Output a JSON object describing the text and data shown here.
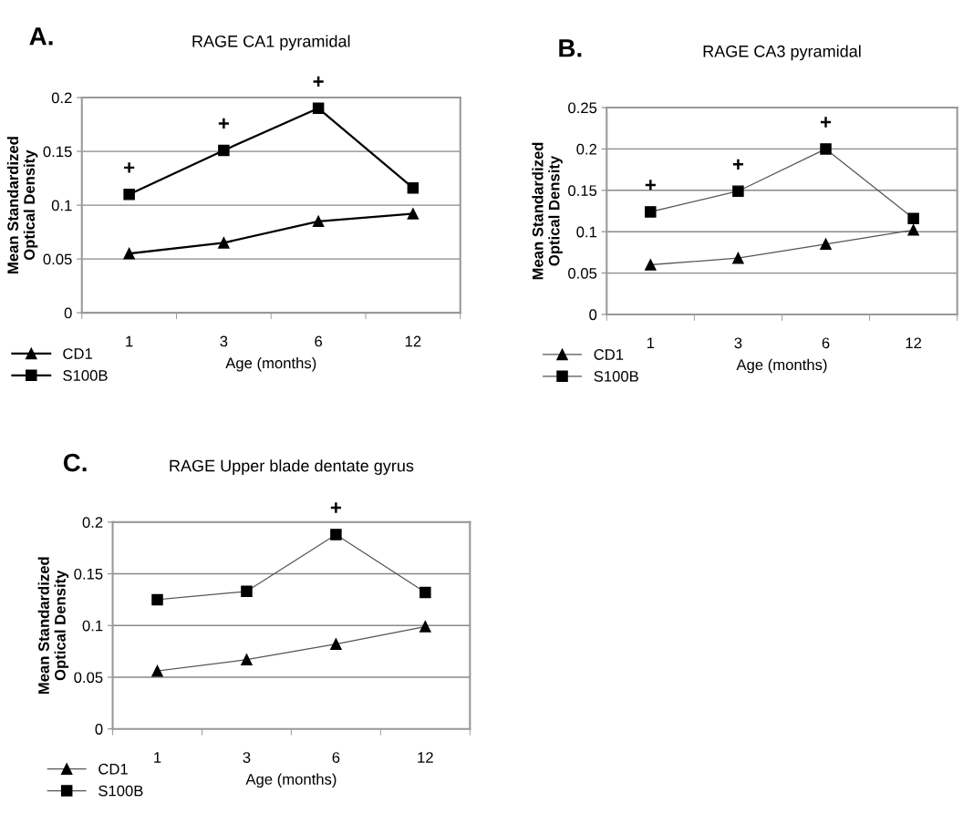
{
  "chart_data": [
    {
      "type": "line",
      "title": "RAGE CA1 pyramidal",
      "xlabel": "Age (months)",
      "ylabel": "Mean Standardized\nOptical Density",
      "categories": [
        "1",
        "3",
        "6",
        "12"
      ],
      "ylim": [
        0,
        0.2
      ],
      "yticks": [
        0,
        0.05,
        0.1,
        0.15,
        0.2
      ],
      "grid": "y",
      "legend": "bottom left",
      "series": [
        {
          "name": "CD1",
          "color": "#000000",
          "marker": "triangle",
          "values": [
            0.055,
            0.065,
            0.085,
            0.092
          ]
        },
        {
          "name": "S100B",
          "color": "#000000",
          "marker": "square",
          "values": [
            0.11,
            0.151,
            0.19,
            0.116
          ]
        }
      ],
      "annotations": [
        "A.",
        {
          "text": "+",
          "x": "1",
          "y": 0.11
        },
        {
          "text": "+",
          "x": "3",
          "y": 0.151
        },
        {
          "text": "+",
          "x": "6",
          "y": 0.19
        }
      ]
    },
    {
      "type": "line",
      "title": "RAGE CA3 pyramidal",
      "xlabel": "Age (months)",
      "ylabel": "Mean Standardized\nOptical Density",
      "categories": [
        "1",
        "3",
        "6",
        "12"
      ],
      "ylim": [
        0,
        0.25
      ],
      "yticks": [
        0,
        0.05,
        0.1,
        0.15,
        0.2,
        0.25
      ],
      "grid": "y",
      "legend": "bottom left",
      "series": [
        {
          "name": "CD1",
          "color": "#555555",
          "marker": "triangle",
          "values": [
            0.06,
            0.068,
            0.085,
            0.102
          ]
        },
        {
          "name": "S100B",
          "color": "#555555",
          "marker": "square",
          "values": [
            0.124,
            0.149,
            0.2,
            0.116
          ]
        }
      ],
      "annotations": [
        "B.",
        {
          "text": "+",
          "x": "1",
          "y": 0.124
        },
        {
          "text": "+",
          "x": "3",
          "y": 0.149
        },
        {
          "text": "+",
          "x": "6",
          "y": 0.2
        }
      ]
    },
    {
      "type": "line",
      "title": "RAGE Upper blade dentate gyrus",
      "xlabel": "Age (months)",
      "ylabel": "Mean Standardized\nOptical Density",
      "categories": [
        "1",
        "3",
        "6",
        "12"
      ],
      "ylim": [
        0,
        0.2
      ],
      "yticks": [
        0,
        0.05,
        0.1,
        0.15,
        0.2
      ],
      "grid": "y",
      "legend": "bottom left",
      "series": [
        {
          "name": "CD1",
          "color": "#555555",
          "marker": "triangle",
          "values": [
            0.056,
            0.067,
            0.082,
            0.099
          ]
        },
        {
          "name": "S100B",
          "color": "#555555",
          "marker": "square",
          "values": [
            0.125,
            0.133,
            0.188,
            0.132
          ]
        }
      ],
      "annotations": [
        "C.",
        {
          "text": "+",
          "x": "6",
          "y": 0.188
        }
      ]
    }
  ]
}
